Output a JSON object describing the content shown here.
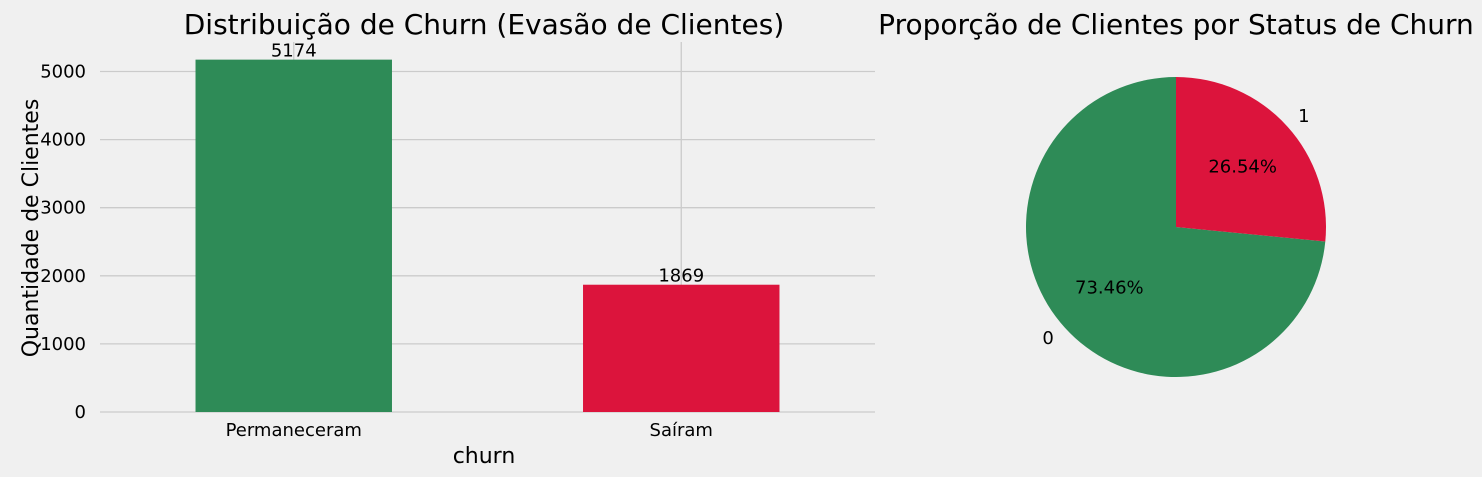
{
  "colors": {
    "background": "#f0f0f0",
    "grid": "#cbcbcb",
    "green": "#2e8b57",
    "red": "#dc143c"
  },
  "chart_data": [
    {
      "type": "bar",
      "title": "Distribuição de Churn (Evasão de Clientes)",
      "xlabel": "churn",
      "ylabel": "Quantidade de Clientes",
      "categories": [
        "Permaneceram",
        "Saíram"
      ],
      "values": [
        5174,
        1869
      ],
      "data_labels": [
        "5174",
        "1869"
      ],
      "bar_colors": [
        "#2e8b57",
        "#dc143c"
      ],
      "yticks": [
        0,
        1000,
        2000,
        3000,
        4000,
        5000
      ],
      "ylim": [
        0,
        5433
      ],
      "grid": true
    },
    {
      "type": "pie",
      "title": "Proporção de Clientes por Status de Churn",
      "labels": [
        "0",
        "1"
      ],
      "values": [
        73.46,
        26.54
      ],
      "percent_labels": [
        "73.46%",
        "26.54%"
      ],
      "slice_colors": [
        "#2e8b57",
        "#dc143c"
      ],
      "start_angle": 90,
      "counterclockwise": true
    }
  ]
}
